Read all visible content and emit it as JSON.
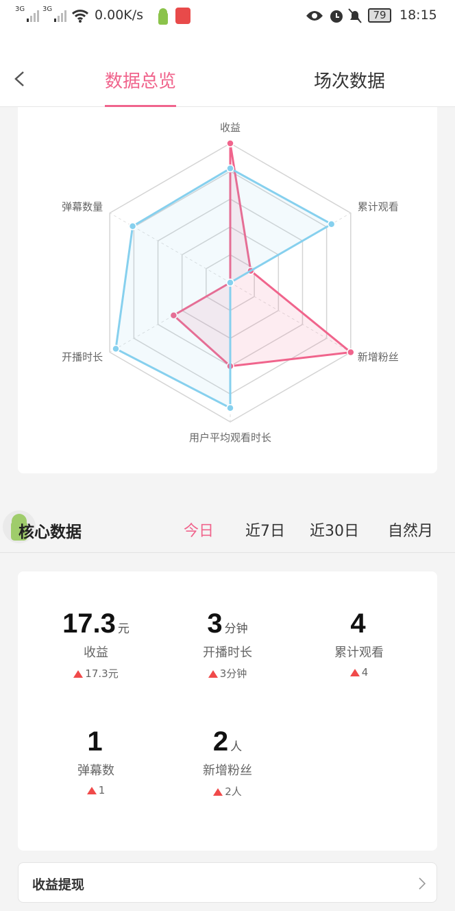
{
  "status_bar": {
    "signal1": "3G",
    "signal2": "3G",
    "speed": "0.00K/s",
    "battery": "79",
    "time": "18:15"
  },
  "header": {
    "tabs": [
      {
        "label": "数据总览",
        "active": true
      },
      {
        "label": "场次数据",
        "active": false
      }
    ]
  },
  "chart_data": {
    "type": "radar",
    "axes": [
      "收益",
      "累计观看",
      "新增粉丝",
      "用户平均观看时长",
      "开播时长",
      "弹幕数量"
    ],
    "levels": 5,
    "range": [
      0,
      1
    ],
    "series": [
      {
        "color": "#f0648c",
        "values": [
          1.0,
          0.17,
          1.0,
          0.6,
          0.47,
          0.0
        ]
      },
      {
        "color": "#86d0ee",
        "values": [
          0.82,
          0.84,
          0.0,
          0.9,
          0.95,
          0.81
        ]
      }
    ]
  },
  "core": {
    "title": "核心数据",
    "ranges": [
      {
        "label": "今日",
        "active": true
      },
      {
        "label": "近7日"
      },
      {
        "label": "近30日"
      },
      {
        "label": "自然月"
      }
    ]
  },
  "stats": [
    {
      "value": "17.3",
      "unit": "元",
      "label": "收益",
      "delta": "17.3元"
    },
    {
      "value": "3",
      "unit": "分钟",
      "label": "开播时长",
      "delta": "3分钟"
    },
    {
      "value": "4",
      "unit": "",
      "label": "累计观看",
      "delta": "4"
    },
    {
      "value": "1",
      "unit": "",
      "label": "弹幕数",
      "delta": "1"
    },
    {
      "value": "2",
      "unit": "人",
      "label": "新增粉丝",
      "delta": "2人"
    }
  ],
  "withdraw": {
    "label": "收益提现"
  },
  "colors": {
    "accent": "#f0648c",
    "blue": "#86d0ee",
    "up": "#f04a4a"
  }
}
